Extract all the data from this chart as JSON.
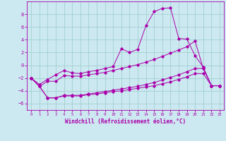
{
  "xlabel": "Windchill (Refroidissement éolien,°C)",
  "background_color": "#cce8f0",
  "grid_color": "#99cccc",
  "line_color": "#aa00aa",
  "xlim": [
    -0.5,
    23.5
  ],
  "ylim": [
    -7,
    10
  ],
  "xticks": [
    0,
    1,
    2,
    3,
    4,
    5,
    6,
    7,
    8,
    9,
    10,
    11,
    12,
    13,
    14,
    15,
    16,
    17,
    18,
    19,
    20,
    21,
    22,
    23
  ],
  "yticks": [
    -6,
    -4,
    -2,
    0,
    2,
    4,
    6,
    8
  ],
  "series": {
    "line1": {
      "x": [
        0,
        1,
        2,
        3,
        4,
        5,
        6,
        7,
        8,
        9,
        10,
        11,
        12,
        13,
        14,
        15,
        16,
        17,
        18,
        19,
        20,
        21,
        22,
        23
      ],
      "y": [
        -2,
        -3,
        -2.2,
        -1.5,
        -0.8,
        -1.2,
        -1.3,
        -1.0,
        -0.8,
        -0.5,
        -0.2,
        2.6,
        2.0,
        2.5,
        6.2,
        8.4,
        8.9,
        9.0,
        4.2,
        4.1,
        1.5,
        -0.3,
        -3.2,
        -3.2
      ]
    },
    "line2": {
      "x": [
        0,
        1,
        2,
        3,
        4,
        5,
        6,
        7,
        8,
        9,
        10,
        11,
        12,
        13,
        14,
        15,
        16,
        17,
        18,
        19,
        20,
        21,
        22,
        23
      ],
      "y": [
        -2,
        -3.3,
        -2.5,
        -2.5,
        -1.6,
        -1.7,
        -1.7,
        -1.5,
        -1.3,
        -1.1,
        -0.8,
        -0.5,
        -0.2,
        0.1,
        0.5,
        0.9,
        1.4,
        1.9,
        2.4,
        2.9,
        3.8,
        -0.5,
        -3.2,
        -3.2
      ]
    },
    "line3": {
      "x": [
        0,
        1,
        2,
        3,
        4,
        5,
        6,
        7,
        8,
        9,
        10,
        11,
        12,
        13,
        14,
        15,
        16,
        17,
        18,
        19,
        20,
        21,
        22,
        23
      ],
      "y": [
        -2,
        -3.3,
        -5.1,
        -5.1,
        -4.7,
        -4.7,
        -4.7,
        -4.5,
        -4.3,
        -4.1,
        -3.9,
        -3.7,
        -3.5,
        -3.3,
        -3.0,
        -2.7,
        -2.3,
        -1.9,
        -1.5,
        -1.0,
        -0.5,
        -0.5,
        -3.2,
        -3.2
      ]
    },
    "line4": {
      "x": [
        0,
        1,
        2,
        3,
        4,
        5,
        6,
        7,
        8,
        9,
        10,
        11,
        12,
        13,
        14,
        15,
        16,
        17,
        18,
        19,
        20,
        21,
        22,
        23
      ],
      "y": [
        -2,
        -3.3,
        -5.1,
        -5.1,
        -4.8,
        -4.8,
        -4.8,
        -4.6,
        -4.5,
        -4.3,
        -4.1,
        -4.0,
        -3.8,
        -3.6,
        -3.4,
        -3.2,
        -2.9,
        -2.6,
        -2.2,
        -1.8,
        -1.3,
        -1.3,
        -3.2,
        -3.2
      ]
    }
  }
}
